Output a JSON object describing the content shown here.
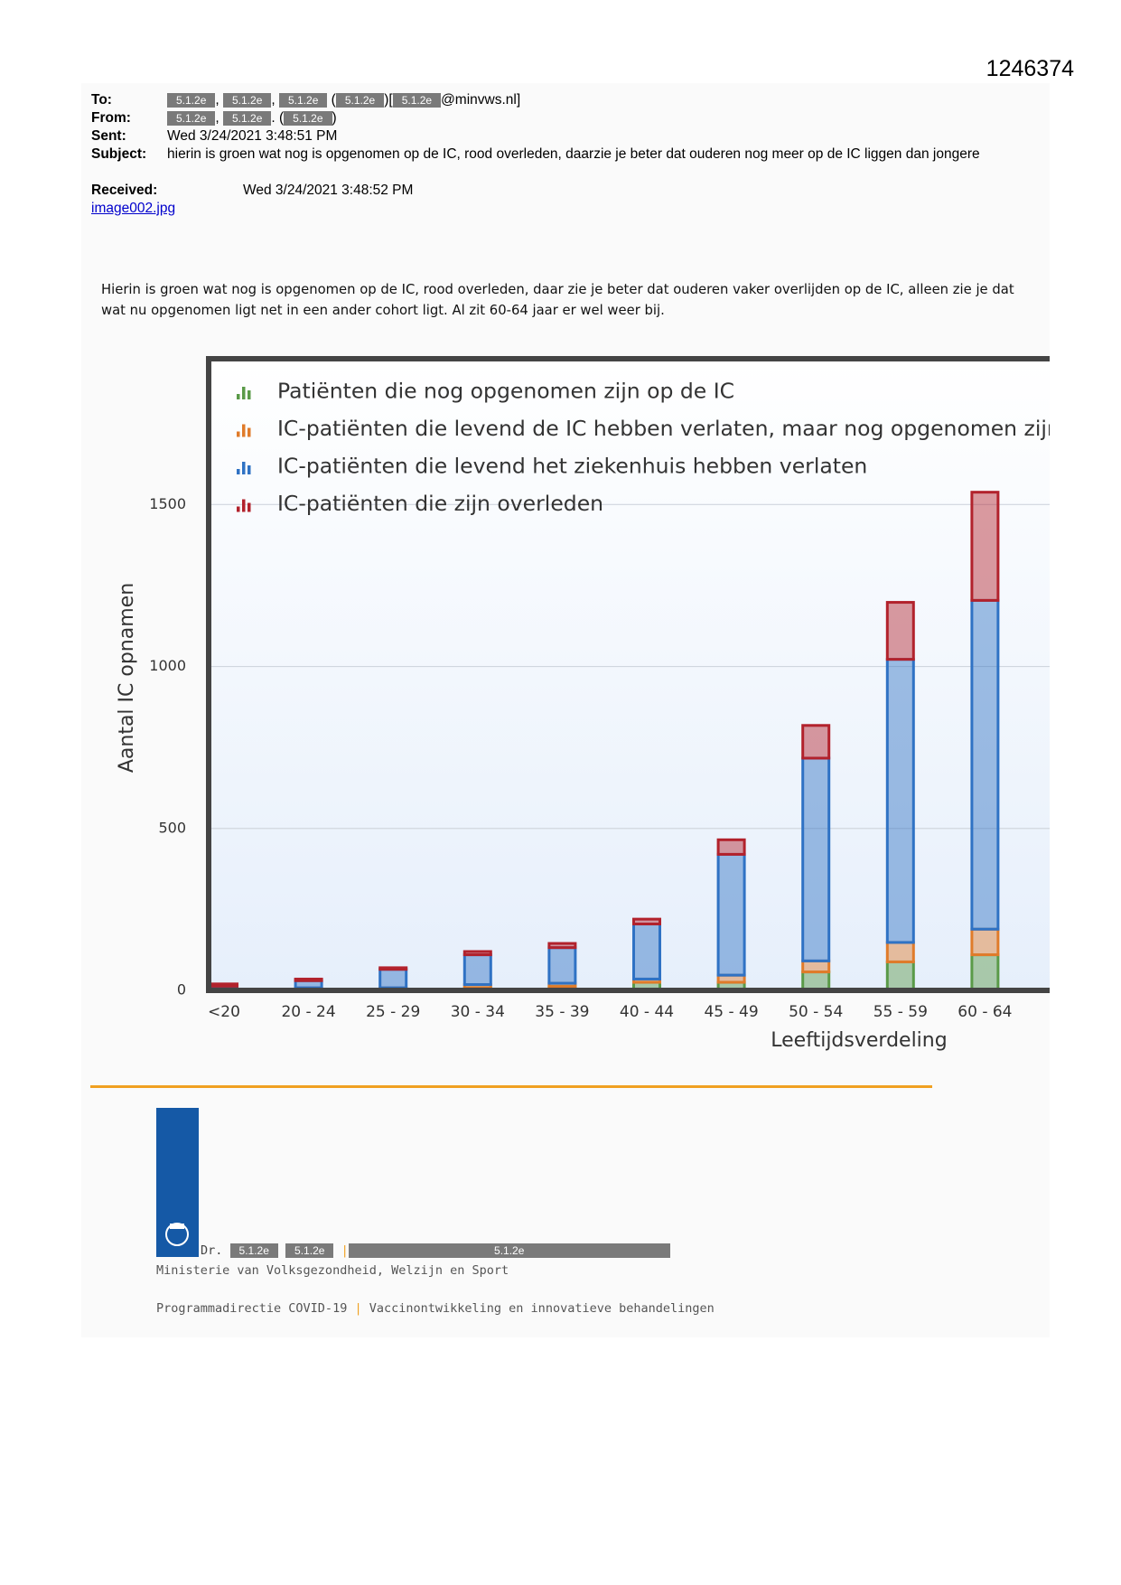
{
  "document_id": "1246374",
  "email": {
    "to": {
      "label": "To:",
      "segments": [
        {
          "text": "5.1.2e",
          "redacted": true
        },
        {
          "text": ", ",
          "redacted": false
        },
        {
          "text": "5.1.2e",
          "redacted": true
        },
        {
          "text": ", ",
          "redacted": false
        },
        {
          "text": "5.1.2e",
          "redacted": true
        },
        {
          "text": " (",
          "redacted": false
        },
        {
          "text": "5.1.2e",
          "redacted": true
        },
        {
          "text": ")[",
          "redacted": false
        },
        {
          "text": "5.1.2e",
          "redacted": true
        },
        {
          "text": "@minvws.nl]",
          "redacted": false
        }
      ]
    },
    "from": {
      "label": "From:",
      "segments": [
        {
          "text": "5.1.2e",
          "redacted": true
        },
        {
          "text": ", ",
          "redacted": false
        },
        {
          "text": "5.1.2e",
          "redacted": true
        },
        {
          "text": ". (",
          "redacted": false
        },
        {
          "text": "5.1.2e",
          "redacted": true
        },
        {
          "text": ")",
          "redacted": false
        }
      ]
    },
    "sent": {
      "label": "Sent:",
      "value": "Wed 3/24/2021 3:48:51 PM"
    },
    "subject": {
      "label": "Subject:",
      "value": "hierin is groen wat nog is opgenomen op de IC, rood overleden, daarzie je beter dat ouderen nog meer op de IC liggen dan jongere"
    },
    "received": {
      "label": "Received:",
      "value": "Wed 3/24/2021 3:48:52 PM"
    },
    "attachment": "image002.jpg"
  },
  "body": "Hierin is groen wat nog is opgenomen op de IC, rood overleden, daar zie je beter dat ouderen vaker overlijden op de IC, alleen zie je dat wat nu opgenomen ligt net in een ander cohort ligt. Al zit 60-64 jaar er wel weer bij.",
  "chart_data": {
    "type": "bar",
    "stacked": true,
    "y_label": "Aantal IC opnamen",
    "x_label": "Leeftijdsverdeling",
    "categories": [
      "<20",
      "20 - 24",
      "25 - 29",
      "30 - 34",
      "35 - 39",
      "40 - 44",
      "45 - 49",
      "50 - 54",
      "55 - 59",
      "60 - 64"
    ],
    "series": [
      {
        "name": "Patiënten die nog opgenomen zijn op de IC",
        "color": "#5a9a48",
        "values": [
          2,
          3,
          3,
          8,
          12,
          25,
          25,
          57,
          88,
          110
        ]
      },
      {
        "name": "IC-patiënten die levend de IC hebben verlaten, maar nog opgenomen zijn",
        "color": "#e07b2a",
        "values": [
          3,
          5,
          5,
          10,
          10,
          10,
          22,
          34,
          60,
          79
        ]
      },
      {
        "name": "IC-patiënten die levend het ziekenhuis hebben verlaten",
        "color": "#2f72c4",
        "values": [
          8,
          22,
          57,
          92,
          110,
          170,
          373,
          626,
          874,
          1015
        ]
      },
      {
        "name": "IC-patiënten die zijn overleden",
        "color": "#b2222c",
        "values": [
          7,
          5,
          5,
          10,
          13,
          15,
          45,
          101,
          176,
          334
        ]
      }
    ],
    "ylim": [
      0,
      1950
    ],
    "yticks": [
      0,
      500,
      1000,
      1500
    ],
    "grid": true,
    "legend": "top-left"
  },
  "footer": {
    "title": "Dr.",
    "name_redactions": [
      "5.1.2e",
      "5.1.2e"
    ],
    "separator": "|",
    "role_redaction": "5.1.2e",
    "ministry": "Ministerie van Volksgezondheid, Welzijn en Sport",
    "department": "Programmadirectie COVID-19",
    "unit": "Vaccinontwikkeling en innovatieve behandelingen"
  }
}
